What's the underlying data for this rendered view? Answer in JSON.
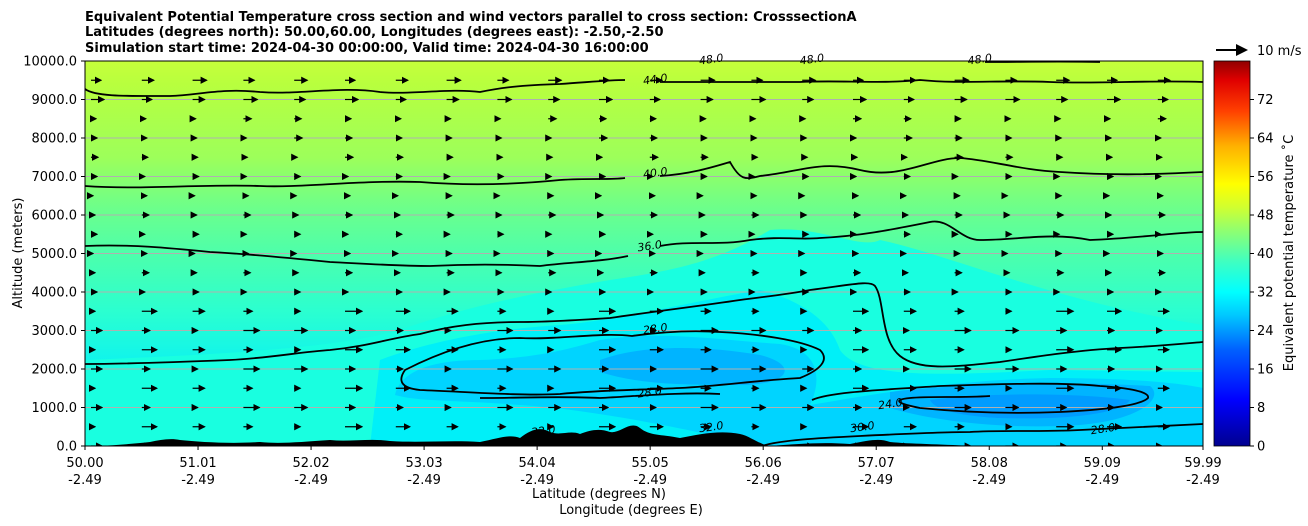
{
  "chart_data": {
    "type": "contour",
    "title_lines": [
      "Equivalent Potential Temperature cross section and wind vectors parallel to cross section: CrosssectionA",
      "Latitudes (degrees north): 50.00,60.00, Longitudes (degrees east): -2.50,-2.50",
      "Simulation start time: 2024-04-30 00:00:00, Valid time: 2024-04-30 16:00:00"
    ],
    "xlabel_lat": "Latitude (degrees N)",
    "xlabel_lon": "Longitude (degrees E)",
    "ylabel": "Altitude (meters)",
    "x_ticks_lat": [
      "50.00",
      "51.01",
      "52.02",
      "53.03",
      "54.04",
      "55.05",
      "56.06",
      "57.07",
      "58.08",
      "59.09",
      "59.99"
    ],
    "x_ticks_lon": [
      "-2.49",
      "-2.49",
      "-2.49",
      "-2.49",
      "-2.49",
      "-2.49",
      "-2.49",
      "-2.49",
      "-2.49",
      "-2.49",
      "-2.49"
    ],
    "x_tick_values": [
      50.0,
      51.01,
      52.02,
      53.03,
      54.04,
      55.05,
      56.06,
      57.07,
      58.08,
      59.09,
      59.99
    ],
    "xlim": [
      50.0,
      59.99
    ],
    "y_ticks": [
      "0.0",
      "1000.0",
      "2000.0",
      "3000.0",
      "4000.0",
      "5000.0",
      "6000.0",
      "7000.0",
      "8000.0",
      "9000.0",
      "10000.0"
    ],
    "y_tick_values": [
      0,
      1000,
      2000,
      3000,
      4000,
      5000,
      6000,
      7000,
      8000,
      9000,
      10000
    ],
    "ylim": [
      0,
      10000
    ],
    "grid": "horizontal",
    "colorbar": {
      "label": "Equivalent potential temperature ˚C",
      "ticks": [
        "0",
        "8",
        "16",
        "24",
        "32",
        "40",
        "48",
        "56",
        "64",
        "72"
      ],
      "tick_values": [
        0,
        8,
        16,
        24,
        32,
        40,
        48,
        56,
        64,
        72
      ],
      "range": [
        0,
        80
      ]
    },
    "contour_labels": [
      {
        "text": "44.0",
        "lat": 55.1,
        "alt": 9430
      },
      {
        "text": "48.0",
        "lat": 55.6,
        "alt": 9950
      },
      {
        "text": "48.0",
        "lat": 56.5,
        "alt": 9950
      },
      {
        "text": "48.0",
        "lat": 58.0,
        "alt": 9950
      },
      {
        "text": "40.0",
        "lat": 55.1,
        "alt": 7000
      },
      {
        "text": "36.0",
        "lat": 55.05,
        "alt": 5100
      },
      {
        "text": "28.0",
        "lat": 55.1,
        "alt": 2950
      },
      {
        "text": "28.0",
        "lat": 55.05,
        "alt": 1300
      },
      {
        "text": "32.0",
        "lat": 55.6,
        "alt": 400
      },
      {
        "text": "24.0",
        "lat": 57.2,
        "alt": 1000
      },
      {
        "text": "28.0",
        "lat": 59.1,
        "alt": 350
      },
      {
        "text": "30.0",
        "lat": 56.95,
        "alt": 400
      },
      {
        "text": "32.0",
        "lat": 54.1,
        "alt": 300
      }
    ],
    "wind_legend": "10 m/s",
    "contour_levels": [
      28.0,
      32.0,
      36.0,
      40.0,
      44.0,
      48.0
    ]
  }
}
